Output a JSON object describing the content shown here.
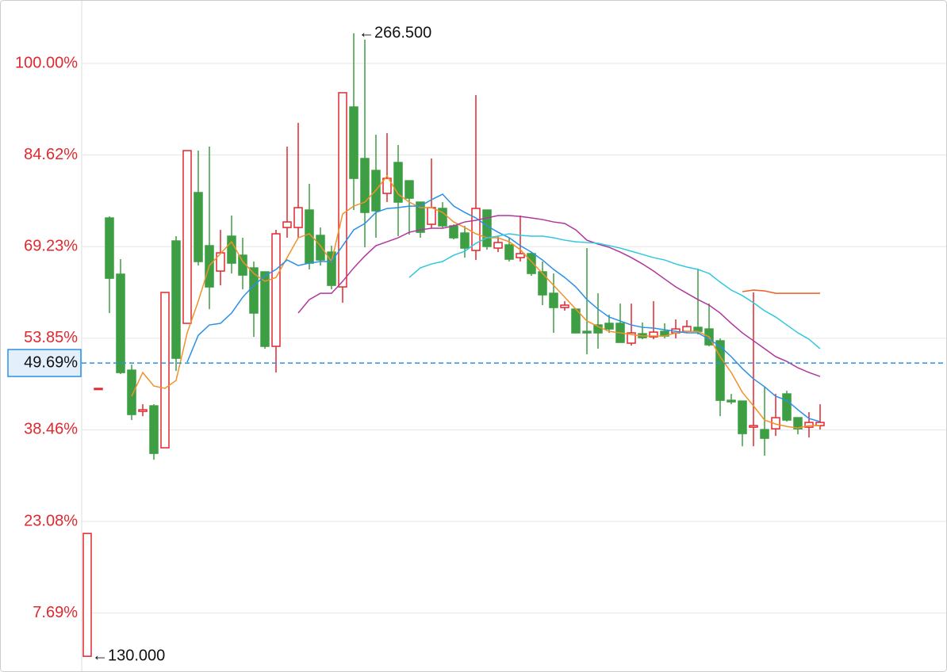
{
  "chart_data": {
    "type": "candlestick",
    "ylim": [
      -2.2,
      110.65
    ],
    "yticks": [
      {
        "value": 100,
        "label": "100.00%"
      },
      {
        "value": 84.62,
        "label": "84.62%"
      },
      {
        "value": 69.23,
        "label": "69.23%"
      },
      {
        "value": 53.85,
        "label": "53.85%"
      },
      {
        "value": 38.46,
        "label": "38.46%"
      },
      {
        "value": 23.08,
        "label": "23.08%"
      },
      {
        "value": 7.69,
        "label": "7.69%"
      }
    ],
    "grid": true,
    "up_color": "#e0282e",
    "down_color": "#3d9e43",
    "open": [
      0.44,
      45.43,
      74.05,
      64.6,
      48.49,
      41.57,
      42.5,
      35.45,
      70.19,
      56.35,
      78.31,
      69.39,
      65.13,
      70.99,
      67.79,
      65.66,
      65.0,
      52.49,
      72.45,
      72.45,
      75.38,
      71.12,
      68.32,
      62.47,
      92.68,
      84.03,
      82.03,
      78.17,
      83.36,
      80.3,
      76.71,
      72.98,
      75.65,
      72.72,
      71.52,
      68.59,
      75.38,
      68.99,
      69.52,
      67.39,
      68.06,
      65.0,
      61.4,
      59.01,
      58.74,
      55.01,
      56.08,
      56.35,
      56.35,
      53.02,
      54.61,
      54.08,
      55.01,
      54.75,
      55.01,
      55.68,
      55.41,
      53.42,
      43.43,
      43.3,
      38.91,
      38.51,
      38.64,
      44.5,
      40.51,
      38.91,
      39.18
    ],
    "high": [
      21.07,
      45.43,
      74.31,
      67.13,
      49.42,
      42.77,
      42.77,
      61.54,
      70.99,
      85.36,
      85.36,
      86.03,
      72.05,
      74.45,
      70.72,
      66.73,
      65.0,
      72.05,
      86.03,
      90.02,
      79.77,
      72.45,
      69.39,
      95.08,
      105.06,
      103.99,
      88.02,
      88.29,
      86.29,
      80.3,
      76.71,
      84.03,
      76.71,
      72.98,
      72.72,
      94.68,
      75.38,
      70.99,
      70.72,
      74.45,
      68.32,
      66.73,
      64.73,
      60.07,
      58.74,
      68.99,
      61.4,
      57.81,
      59.67,
      59.67,
      56.48,
      60.07,
      56.35,
      57.01,
      56.88,
      65.53,
      59.67,
      53.82,
      44.5,
      43.3,
      61.54,
      45.7,
      44.5,
      45.03,
      40.51,
      41.44,
      42.77
    ],
    "low": [
      0.44,
      45.43,
      58.08,
      47.83,
      40.11,
      40.77,
      33.45,
      35.45,
      48.36,
      56.35,
      66.06,
      58.74,
      62.73,
      64.73,
      62.07,
      54.08,
      52.09,
      48.09,
      70.72,
      70.72,
      65.4,
      66.06,
      62.07,
      59.81,
      75.38,
      69.12,
      70.72,
      76.71,
      70.99,
      71.25,
      70.72,
      72.32,
      72.32,
      70.45,
      67.39,
      66.99,
      68.72,
      68.32,
      66.73,
      66.73,
      64.33,
      59.41,
      54.75,
      58.47,
      54.75,
      51.15,
      52.09,
      54.75,
      53.15,
      52.62,
      53.68,
      53.68,
      53.82,
      53.82,
      54.75,
      54.48,
      52.49,
      40.77,
      42.77,
      35.71,
      35.71,
      34.12,
      37.44,
      39.84,
      37.71,
      37.18,
      38.51
    ],
    "close": [
      21.07,
      45.43,
      63.93,
      48.09,
      41.04,
      41.84,
      34.52,
      61.54,
      50.49,
      85.36,
      66.73,
      62.47,
      68.19,
      66.46,
      64.46,
      58.08,
      52.49,
      71.39,
      73.38,
      75.78,
      66.46,
      66.99,
      62.73,
      95.08,
      80.7,
      74.98,
      75.25,
      80.7,
      76.71,
      77.37,
      71.65,
      75.78,
      72.72,
      70.72,
      68.99,
      75.65,
      69.26,
      69.92,
      67.13,
      68.06,
      64.73,
      61.14,
      59.01,
      59.41,
      54.75,
      54.75,
      54.75,
      55.41,
      53.15,
      54.75,
      53.95,
      54.88,
      54.22,
      55.41,
      55.81,
      55.01,
      52.75,
      43.43,
      43.17,
      37.84,
      39.18,
      37.05,
      40.51,
      40.11,
      38.64,
      39.71,
      39.71
    ],
    "series": [
      {
        "color": "#f0912a",
        "values": [
          null,
          null,
          null,
          null,
          44.1,
          48.09,
          45.83,
          45.43,
          46.76,
          54.75,
          60.07,
          66.06,
          68.06,
          70.05,
          66.73,
          64.73,
          63.4,
          64.06,
          67.39,
          70.72,
          71.39,
          69.39,
          66.73,
          74.71,
          76.04,
          76.71,
          78.71,
          81.1,
          78.04,
          76.71,
          75.78,
          75.78,
          74.98,
          73.38,
          72.45,
          71.39,
          70.72,
          70.72,
          70.05,
          68.72,
          66.73,
          64.73,
          62.73,
          60.74,
          58.74,
          56.74,
          55.81,
          55.01,
          54.75,
          54.48,
          54.22,
          54.22,
          54.22,
          54.75,
          55.01,
          55.01,
          54.08,
          50.75,
          48.09,
          44.77,
          42.5,
          40.11,
          39.44,
          39.04,
          38.78,
          39.18,
          39.18
        ]
      },
      {
        "color": "#2a90e8",
        "values": [
          null,
          null,
          null,
          null,
          null,
          null,
          null,
          null,
          null,
          49.82,
          54.35,
          56.08,
          56.35,
          58.08,
          60.74,
          62.73,
          64.33,
          65.4,
          66.99,
          66.06,
          66.46,
          66.73,
          66.73,
          69.39,
          72.05,
          73.12,
          74.98,
          75.64,
          75.78,
          76.04,
          76.04,
          77.11,
          78.04,
          76.04,
          74.98,
          74.05,
          72.72,
          71.65,
          70.72,
          69.39,
          68.32,
          66.99,
          65.4,
          64.06,
          62.47,
          60.34,
          58.74,
          57.41,
          56.74,
          56.08,
          55.68,
          55.55,
          55.28,
          55.01,
          54.75,
          54.75,
          53.68,
          52.49,
          50.75,
          48.76,
          47.03,
          45.7,
          44.1,
          43.43,
          41.84,
          40.37,
          39.84
        ]
      },
      {
        "color": "#b0359e",
        "values": [
          null,
          null,
          null,
          null,
          null,
          null,
          null,
          null,
          null,
          null,
          null,
          null,
          null,
          null,
          null,
          null,
          null,
          null,
          null,
          58.08,
          60.34,
          61.4,
          61.4,
          63.4,
          65.66,
          67.66,
          69.39,
          70.05,
          70.72,
          71.65,
          72.05,
          72.32,
          72.32,
          72.72,
          73.38,
          73.65,
          74.05,
          74.45,
          74.45,
          74.31,
          74.05,
          73.78,
          73.38,
          73.12,
          72.05,
          70.32,
          69.66,
          69.12,
          68.32,
          67.39,
          66.33,
          65.13,
          63.8,
          62.47,
          61.4,
          60.34,
          59.41,
          58.08,
          56.35,
          54.75,
          53.42,
          52.09,
          50.75,
          49.96,
          48.89,
          48.09,
          47.43
        ]
      },
      {
        "color": "#2ec8e0",
        "values": [
          null,
          null,
          null,
          null,
          null,
          null,
          null,
          null,
          null,
          null,
          null,
          null,
          null,
          null,
          null,
          null,
          null,
          null,
          null,
          null,
          null,
          null,
          null,
          null,
          null,
          null,
          null,
          null,
          null,
          64.06,
          65.66,
          66.33,
          66.73,
          67.79,
          68.46,
          69.79,
          70.72,
          70.99,
          71.39,
          71.12,
          70.99,
          70.99,
          70.72,
          70.32,
          70.05,
          69.92,
          69.79,
          69.39,
          68.99,
          68.46,
          67.92,
          67.39,
          66.99,
          66.33,
          65.8,
          65.4,
          64.73,
          63.27,
          61.94,
          61.0,
          59.81,
          58.47,
          57.41,
          56.08,
          54.75,
          53.68,
          52.09
        ]
      },
      {
        "color": "#f05a1e",
        "values": [
          null,
          null,
          null,
          null,
          null,
          null,
          null,
          null,
          null,
          null,
          null,
          null,
          null,
          null,
          null,
          null,
          null,
          null,
          null,
          null,
          null,
          null,
          null,
          null,
          null,
          null,
          null,
          null,
          null,
          null,
          null,
          null,
          null,
          null,
          null,
          null,
          null,
          null,
          null,
          null,
          null,
          null,
          null,
          null,
          null,
          null,
          null,
          null,
          null,
          null,
          null,
          null,
          null,
          null,
          null,
          null,
          null,
          null,
          null,
          61.67,
          61.94,
          61.8,
          61.4,
          61.4,
          61.4,
          61.4,
          61.4
        ]
      }
    ],
    "current_value": {
      "value": 49.69,
      "label": "49.69%",
      "color": "#2a90e8"
    },
    "annotations": [
      "←266.500",
      "←130.000"
    ]
  }
}
